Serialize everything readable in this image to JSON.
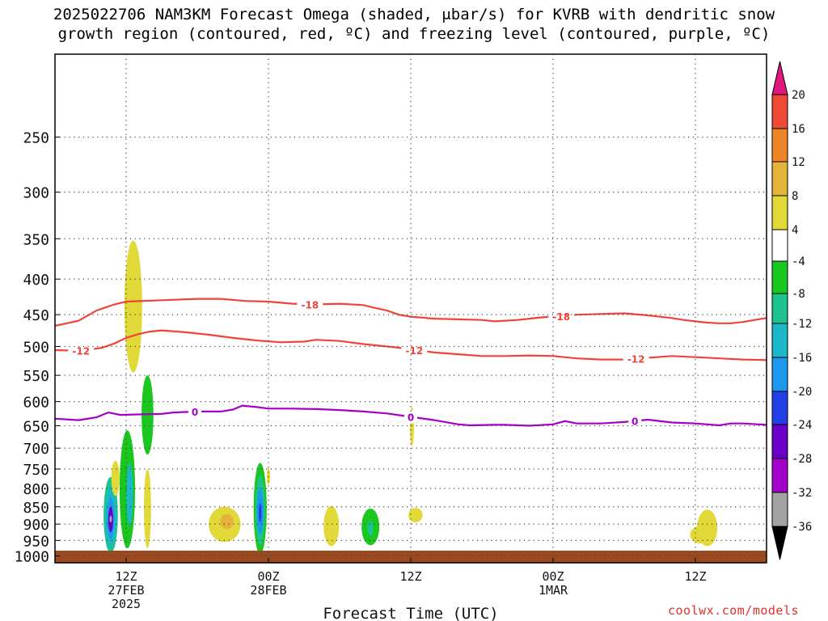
{
  "title": {
    "line1": "2025022706 NAM3KM Forecast Omega (shaded, μbar/s) for KVRB with dendritic snow",
    "line2": "growth region (contoured, red, ºC) and freezing level (contoured, purple, ºC)"
  },
  "credit": "coolwx.com/models",
  "chart_data": {
    "type": "contour",
    "title": "2025022706 NAM3KM Forecast Omega (shaded, μbar/s) for KVRB with dendritic snow growth region (contoured, red, ºC) and freezing level (contoured, purple, ºC)",
    "xlabel": "Forecast Time (UTC)",
    "ylabel": "",
    "x_unit": "forecast hour from 2025022706",
    "xlim": [
      0,
      60
    ],
    "x_ticks": [
      {
        "hour": 6,
        "lines": [
          "12Z",
          "27FEB",
          "2025"
        ]
      },
      {
        "hour": 18,
        "lines": [
          "00Z",
          "28FEB"
        ]
      },
      {
        "hour": 30,
        "lines": [
          "12Z"
        ]
      },
      {
        "hour": 42,
        "lines": [
          "00Z",
          "1MAR"
        ]
      },
      {
        "hour": 54,
        "lines": [
          "12Z"
        ]
      }
    ],
    "y_unit": "hPa",
    "y_scale": "log",
    "ylim": [
      1023,
      190
    ],
    "y_ticks": [
      250,
      300,
      350,
      400,
      450,
      500,
      550,
      600,
      650,
      700,
      750,
      800,
      850,
      900,
      950,
      1000
    ],
    "grid": true,
    "colorbar": {
      "unit": "μbar/s",
      "bounds": [
        -36,
        -32,
        -28,
        -24,
        -20,
        -16,
        -12,
        -8,
        -4,
        4,
        8,
        12,
        16,
        20
      ],
      "colors": [
        "#000000",
        "#a3a3a3",
        "#a300c9",
        "#6a00c8",
        "#2340e6",
        "#1c98ef",
        "#1ab8c8",
        "#1cc38e",
        "#19c71e",
        "#ffffff",
        "#e1d937",
        "#e3b33c",
        "#ee8428",
        "#ee4a36",
        "#e0187e"
      ]
    },
    "contours": [
      {
        "name": "-18",
        "color": "#f0443a",
        "label": "-18",
        "points": [
          [
            0,
            467
          ],
          [
            2,
            459
          ],
          [
            3.5,
            444
          ],
          [
            5,
            435
          ],
          [
            6,
            431
          ],
          [
            9,
            429
          ],
          [
            12,
            427
          ],
          [
            14,
            427
          ],
          [
            16,
            430
          ],
          [
            18,
            431
          ],
          [
            20,
            434
          ],
          [
            22,
            435
          ],
          [
            24,
            434
          ],
          [
            26,
            436
          ],
          [
            27,
            440
          ],
          [
            28,
            444
          ],
          [
            29,
            450
          ],
          [
            30,
            453
          ],
          [
            32,
            456
          ],
          [
            34,
            457
          ],
          [
            36,
            458
          ],
          [
            37,
            460
          ],
          [
            38,
            459
          ],
          [
            39,
            458
          ],
          [
            40,
            456
          ],
          [
            41,
            454
          ],
          [
            42,
            453
          ],
          [
            44,
            450
          ],
          [
            46,
            449
          ],
          [
            48,
            448
          ],
          [
            50,
            451
          ],
          [
            52,
            455
          ],
          [
            53,
            458
          ],
          [
            54,
            460
          ],
          [
            55,
            462
          ],
          [
            56,
            463
          ],
          [
            57,
            463
          ],
          [
            58,
            461
          ],
          [
            59,
            458
          ],
          [
            60,
            455
          ]
        ],
        "label_hours": [
          21.5,
          42.7
        ]
      },
      {
        "name": "-12",
        "color": "#f0443a",
        "label": "-12",
        "points": [
          [
            0,
            506
          ],
          [
            2,
            507
          ],
          [
            3,
            505
          ],
          [
            4,
            502
          ],
          [
            5,
            495
          ],
          [
            6,
            486
          ],
          [
            7,
            480
          ],
          [
            8,
            476
          ],
          [
            9,
            474
          ],
          [
            11,
            477
          ],
          [
            13,
            481
          ],
          [
            15,
            486
          ],
          [
            17,
            490
          ],
          [
            19,
            493
          ],
          [
            21,
            492
          ],
          [
            22,
            489
          ],
          [
            24,
            491
          ],
          [
            26,
            496
          ],
          [
            28,
            500
          ],
          [
            29,
            502
          ],
          [
            30,
            505
          ],
          [
            32,
            510
          ],
          [
            34,
            513
          ],
          [
            36,
            516
          ],
          [
            38,
            516
          ],
          [
            40,
            515
          ],
          [
            42,
            516
          ],
          [
            44,
            520
          ],
          [
            46,
            522
          ],
          [
            48,
            522
          ],
          [
            50,
            519
          ],
          [
            52,
            516
          ],
          [
            54,
            518
          ],
          [
            56,
            520
          ],
          [
            58,
            522
          ],
          [
            60,
            523
          ]
        ],
        "label_hours": [
          2.2,
          30.3,
          49.0
        ]
      },
      {
        "name": "0",
        "color": "#a400c8",
        "label": "0",
        "points": [
          [
            0,
            635
          ],
          [
            2,
            638
          ],
          [
            3.5,
            632
          ],
          [
            4.5,
            622
          ],
          [
            5.5,
            627
          ],
          [
            7,
            626
          ],
          [
            9,
            625
          ],
          [
            10,
            622
          ],
          [
            12,
            620
          ],
          [
            14,
            620
          ],
          [
            15,
            616
          ],
          [
            15.8,
            608
          ],
          [
            17,
            611
          ],
          [
            18,
            614
          ],
          [
            20,
            614
          ],
          [
            22,
            615
          ],
          [
            24,
            617
          ],
          [
            26,
            620
          ],
          [
            28,
            624
          ],
          [
            30,
            631
          ],
          [
            32,
            638
          ],
          [
            34,
            647
          ],
          [
            35,
            649
          ],
          [
            37,
            648
          ],
          [
            38,
            648
          ],
          [
            40,
            650
          ],
          [
            42,
            647
          ],
          [
            43,
            640
          ],
          [
            44,
            645
          ],
          [
            46,
            645
          ],
          [
            48,
            642
          ],
          [
            50,
            637
          ],
          [
            52,
            643
          ],
          [
            54,
            645
          ],
          [
            55,
            647
          ],
          [
            56,
            649
          ],
          [
            57,
            645
          ],
          [
            58,
            645
          ],
          [
            60,
            648
          ]
        ],
        "label_hours": [
          11.8,
          30.0,
          48.9
        ]
      }
    ],
    "omega_areas": [
      {
        "hour": 6.6,
        "p_top": 352,
        "p_bottom": 545,
        "halfwidth_hours": 0.75,
        "value": 6
      },
      {
        "hour": 4.7,
        "p_top": 770,
        "p_bottom": 990,
        "halfwidth_hours": 0.6,
        "value": -10
      },
      {
        "hour": 4.7,
        "p_top": 800,
        "p_bottom": 970,
        "halfwidth_hours": 0.45,
        "value": -14
      },
      {
        "hour": 4.7,
        "p_top": 825,
        "p_bottom": 945,
        "halfwidth_hours": 0.32,
        "value": -20
      },
      {
        "hour": 4.7,
        "p_top": 850,
        "p_bottom": 925,
        "halfwidth_hours": 0.2,
        "value": -28
      },
      {
        "hour": 4.7,
        "p_top": 875,
        "p_bottom": 895,
        "halfwidth_hours": 0.07,
        "value": -36
      },
      {
        "hour": 5.1,
        "p_top": 730,
        "p_bottom": 820,
        "halfwidth_hours": 0.35,
        "value": 6
      },
      {
        "hour": 6.1,
        "p_top": 660,
        "p_bottom": 975,
        "halfwidth_hours": 0.65,
        "value": -7
      },
      {
        "hour": 6.3,
        "p_top": 735,
        "p_bottom": 905,
        "halfwidth_hours": 0.28,
        "value": -13
      },
      {
        "hour": 7.8,
        "p_top": 550,
        "p_bottom": 715,
        "halfwidth_hours": 0.5,
        "value": -6
      },
      {
        "hour": 7.8,
        "p_top": 750,
        "p_bottom": 975,
        "halfwidth_hours": 0.3,
        "value": 6
      },
      {
        "hour": 14.3,
        "p_top": 850,
        "p_bottom": 955,
        "halfwidth_hours": 1.35,
        "value": 6
      },
      {
        "hour": 14.5,
        "p_top": 870,
        "p_bottom": 915,
        "halfwidth_hours": 0.55,
        "value": 9
      },
      {
        "hour": 17.3,
        "p_top": 735,
        "p_bottom": 995,
        "halfwidth_hours": 0.55,
        "value": -8
      },
      {
        "hour": 17.3,
        "p_top": 765,
        "p_bottom": 965,
        "halfwidth_hours": 0.4,
        "value": -12
      },
      {
        "hour": 17.3,
        "p_top": 800,
        "p_bottom": 930,
        "halfwidth_hours": 0.28,
        "value": -18
      },
      {
        "hour": 17.3,
        "p_top": 840,
        "p_bottom": 895,
        "halfwidth_hours": 0.12,
        "value": -24
      },
      {
        "hour": 18.0,
        "p_top": 748,
        "p_bottom": 790,
        "halfwidth_hours": 0.14,
        "value": 6
      },
      {
        "hour": 23.3,
        "p_top": 848,
        "p_bottom": 968,
        "halfwidth_hours": 0.65,
        "value": 6
      },
      {
        "hour": 26.6,
        "p_top": 855,
        "p_bottom": 965,
        "halfwidth_hours": 0.75,
        "value": -6
      },
      {
        "hour": 26.6,
        "p_top": 890,
        "p_bottom": 935,
        "halfwidth_hours": 0.25,
        "value": -12
      },
      {
        "hour": 30.1,
        "p_top": 610,
        "p_bottom": 695,
        "halfwidth_hours": 0.17,
        "value": 6
      },
      {
        "hour": 30.4,
        "p_top": 853,
        "p_bottom": 895,
        "halfwidth_hours": 0.6,
        "value": 6
      },
      {
        "hour": 55.0,
        "p_top": 858,
        "p_bottom": 968,
        "halfwidth_hours": 0.85,
        "value": 6
      },
      {
        "hour": 54.5,
        "p_top": 905,
        "p_bottom": 960,
        "halfwidth_hours": 0.95,
        "value": 6
      }
    ]
  }
}
